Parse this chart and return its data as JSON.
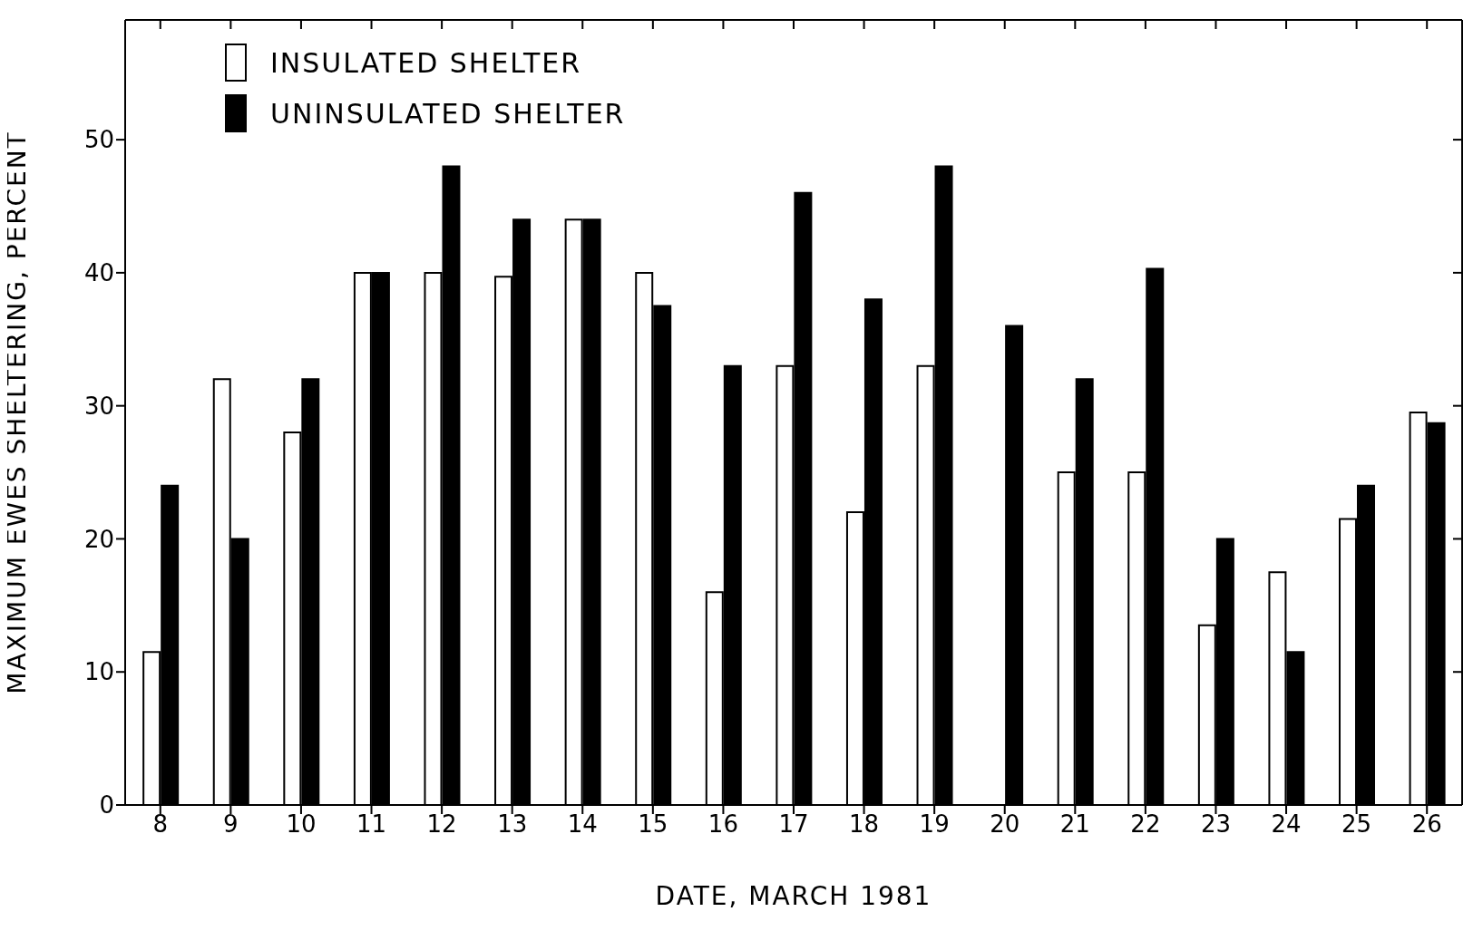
{
  "chart_data": {
    "type": "bar",
    "xlabel": "DATE, MARCH 1981",
    "ylabel": "MAXIMUM EWES SHELTERING, PERCENT",
    "categories": [
      "8",
      "9",
      "10",
      "11",
      "12",
      "13",
      "14",
      "15",
      "16",
      "17",
      "18",
      "19",
      "20",
      "21",
      "22",
      "23",
      "24",
      "25",
      "26"
    ],
    "series": [
      {
        "name": "INSULATED SHELTER",
        "color": "#ffffff",
        "values": [
          11.5,
          32,
          28,
          40,
          40,
          39.7,
          44,
          40,
          16,
          33,
          22,
          33,
          null,
          25,
          25,
          13.5,
          17.5,
          21.5,
          29.5
        ]
      },
      {
        "name": "UNINSULATED SHELTER",
        "color": "#000000",
        "values": [
          24,
          20,
          32,
          40,
          48,
          44,
          44,
          37.5,
          33,
          46,
          38,
          48,
          36,
          32,
          40.3,
          20,
          11.5,
          24,
          28.7
        ]
      }
    ],
    "ylim": [
      0,
      59
    ],
    "yticks": [
      0,
      10,
      20,
      30,
      40,
      50
    ],
    "legend": "top left"
  }
}
